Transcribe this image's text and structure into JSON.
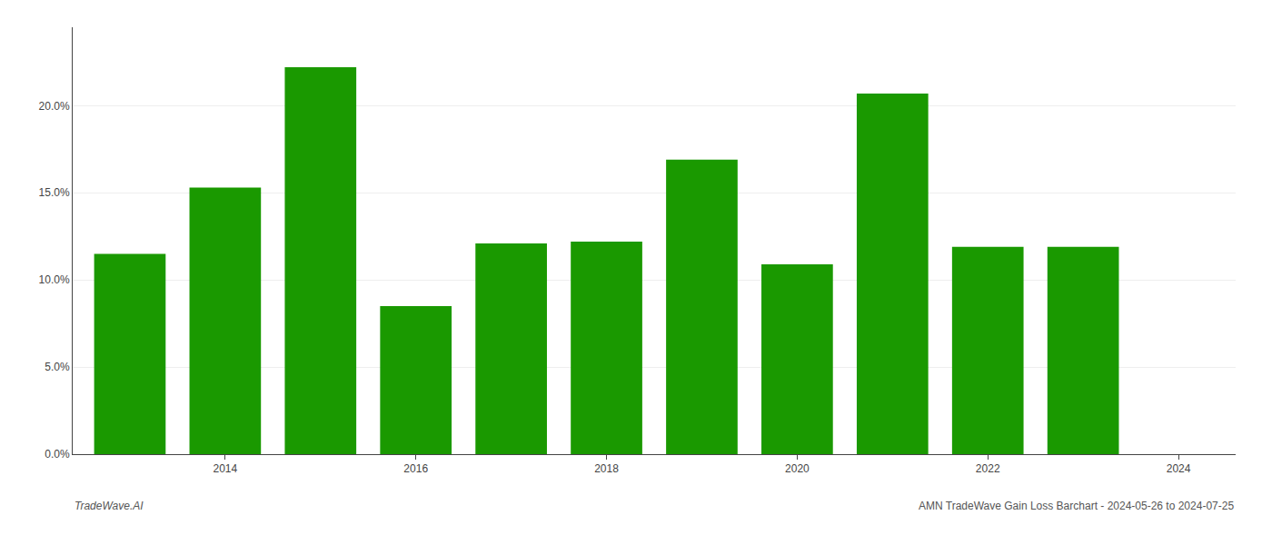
{
  "chart_data": {
    "type": "bar",
    "x": [
      2013,
      2014,
      2015,
      2016,
      2017,
      2018,
      2019,
      2020,
      2021,
      2022,
      2023
    ],
    "values": [
      0.115,
      0.153,
      0.222,
      0.085,
      0.121,
      0.122,
      0.169,
      0.109,
      0.207,
      0.119,
      0.119
    ],
    "color": "#1a9900",
    "xlim": [
      2012.4,
      2024.6
    ],
    "xticks": [
      2014,
      2016,
      2018,
      2020,
      2022,
      2024
    ],
    "ylim": [
      0,
      0.245
    ],
    "yticks": [
      {
        "value": 0.0,
        "label": "0.0%"
      },
      {
        "value": 0.05,
        "label": "5.0%"
      },
      {
        "value": 0.1,
        "label": "10.0%"
      },
      {
        "value": 0.15,
        "label": "15.0%"
      },
      {
        "value": 0.2,
        "label": "20.0%"
      }
    ],
    "grid": true,
    "annotations": [
      "TradeWave.AI",
      "AMN TradeWave Gain Loss Barchart - 2024-05-26 to 2024-07-25"
    ]
  }
}
